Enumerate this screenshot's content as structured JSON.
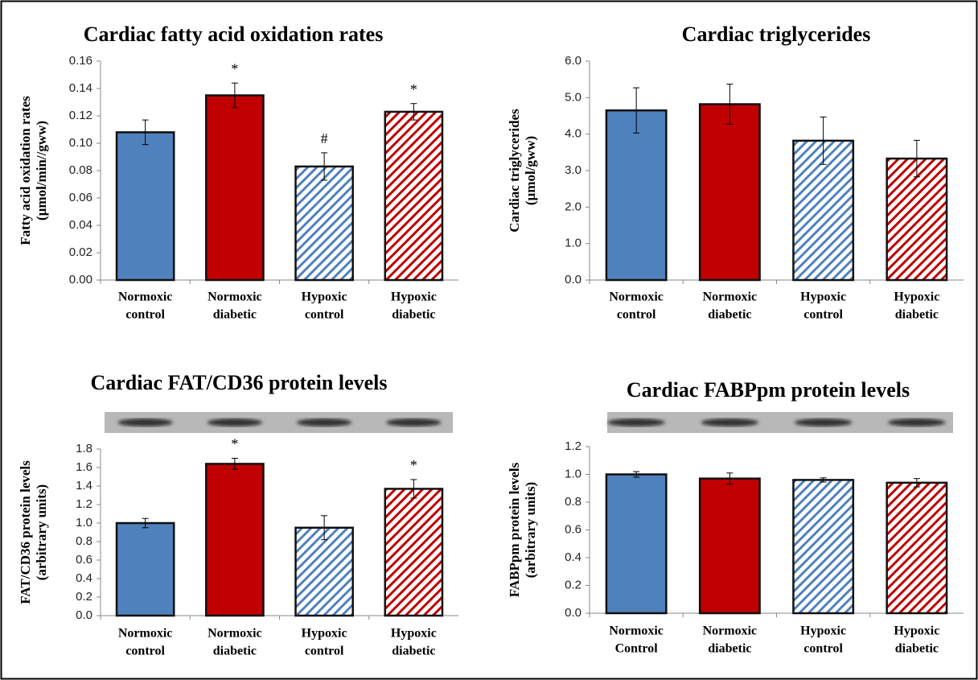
{
  "chart_data": [
    {
      "type": "bar",
      "title": "Cardiac fatty acid oxidation rates",
      "ylabel": [
        "Fatty acid oxidation rates",
        "(µmol/min//gww)"
      ],
      "categories": [
        [
          "Normoxic",
          "control"
        ],
        [
          "Normoxic",
          "diabetic"
        ],
        [
          "Hypoxic",
          "control"
        ],
        [
          "Hypoxic",
          "diabetic"
        ]
      ],
      "values": [
        0.108,
        0.135,
        0.083,
        0.123
      ],
      "errors": [
        0.009,
        0.009,
        0.01,
        0.006
      ],
      "markers": [
        null,
        "*",
        "#",
        "*"
      ],
      "colors": [
        "#4f81bd",
        "#c00000",
        "#4f81bd",
        "#c00000"
      ],
      "hatched": [
        false,
        false,
        true,
        true
      ],
      "ylim": [
        0,
        0.16
      ],
      "yticks": [
        {
          "value": 0,
          "label": "0.00"
        },
        {
          "value": 0.02,
          "label": "0.02"
        },
        {
          "value": 0.04,
          "label": "0.04"
        },
        {
          "value": 0.06,
          "label": "0.06"
        },
        {
          "value": 0.08,
          "label": "0.08"
        },
        {
          "value": 0.1,
          "label": "0.10"
        },
        {
          "value": 0.12,
          "label": "0.12"
        },
        {
          "value": 0.14,
          "label": "0.14"
        },
        {
          "value": 0.16,
          "label": "0.16"
        }
      ]
    },
    {
      "type": "bar",
      "title": "Cardiac triglycerides",
      "ylabel": [
        "Cardiac triglycerides",
        "(µmol/gww)"
      ],
      "categories": [
        [
          "Normoxic",
          "control"
        ],
        [
          "Normoxic",
          "diabetic"
        ],
        [
          "Hypoxic",
          "control"
        ],
        [
          "Hypoxic",
          "diabetic"
        ]
      ],
      "values": [
        4.65,
        4.82,
        3.82,
        3.33
      ],
      "errors": [
        0.62,
        0.55,
        0.65,
        0.5
      ],
      "colors": [
        "#4f81bd",
        "#c00000",
        "#4f81bd",
        "#c00000"
      ],
      "hatched": [
        false,
        false,
        true,
        true
      ],
      "ylim": [
        0,
        6
      ],
      "yticks": [
        {
          "value": 0,
          "label": "0.0"
        },
        {
          "value": 1,
          "label": "1.0"
        },
        {
          "value": 2,
          "label": "2.0"
        },
        {
          "value": 3,
          "label": "3.0"
        },
        {
          "value": 4,
          "label": "4.0"
        },
        {
          "value": 5,
          "label": "5.0"
        },
        {
          "value": 6,
          "label": "6.0"
        }
      ]
    },
    {
      "type": "bar",
      "title": "Cardiac FAT/CD36 protein levels",
      "ylabel": [
        "FAT/CD36 protein levels",
        "(arbitrary units)"
      ],
      "categories": [
        [
          "Normoxic",
          "control"
        ],
        [
          "Normoxic",
          "diabetic"
        ],
        [
          "Hypoxic",
          "control"
        ],
        [
          "Hypoxic",
          "diabetic"
        ]
      ],
      "values": [
        1.0,
        1.64,
        0.95,
        1.37
      ],
      "errors": [
        0.05,
        0.06,
        0.13,
        0.1
      ],
      "markers": [
        null,
        "*",
        null,
        "*"
      ],
      "colors": [
        "#4f81bd",
        "#c00000",
        "#4f81bd",
        "#c00000"
      ],
      "hatched": [
        false,
        false,
        true,
        true
      ],
      "ylim": [
        0,
        1.8
      ],
      "yticks": [
        {
          "value": 0,
          "label": "0.0"
        },
        {
          "value": 0.2,
          "label": "0.2"
        },
        {
          "value": 0.4,
          "label": "0.4"
        },
        {
          "value": 0.6,
          "label": "0.6"
        },
        {
          "value": 0.8,
          "label": "0.8"
        },
        {
          "value": 1,
          "label": "1.0"
        },
        {
          "value": 1.2,
          "label": "1.2"
        },
        {
          "value": 1.4,
          "label": "1.4"
        },
        {
          "value": 1.6,
          "label": "1.6"
        },
        {
          "value": 1.8,
          "label": "1.8"
        }
      ]
    },
    {
      "type": "bar",
      "title": "Cardiac FABPpm protein levels",
      "ylabel": [
        "FABPpm protein levels",
        "(arbitrary units)"
      ],
      "categories": [
        [
          "Normoxic",
          "Control"
        ],
        [
          "Normoxic",
          "diabetic"
        ],
        [
          "Hypoxic",
          "control"
        ],
        [
          "Hypoxic",
          "diabetic"
        ]
      ],
      "values": [
        1.0,
        0.97,
        0.96,
        0.94
      ],
      "errors": [
        0.02,
        0.04,
        0.015,
        0.03
      ],
      "colors": [
        "#4f81bd",
        "#c00000",
        "#4f81bd",
        "#c00000"
      ],
      "hatched": [
        false,
        false,
        true,
        true
      ],
      "ylim": [
        0,
        1.2
      ],
      "yticks": [
        {
          "value": 0,
          "label": "0.0"
        },
        {
          "value": 0.2,
          "label": "0.2"
        },
        {
          "value": 0.4,
          "label": "0.4"
        },
        {
          "value": 0.6,
          "label": "0.6"
        },
        {
          "value": 0.8,
          "label": "0.8"
        },
        {
          "value": 1,
          "label": "1.0"
        },
        {
          "value": 1.2,
          "label": "1.2"
        }
      ]
    }
  ]
}
